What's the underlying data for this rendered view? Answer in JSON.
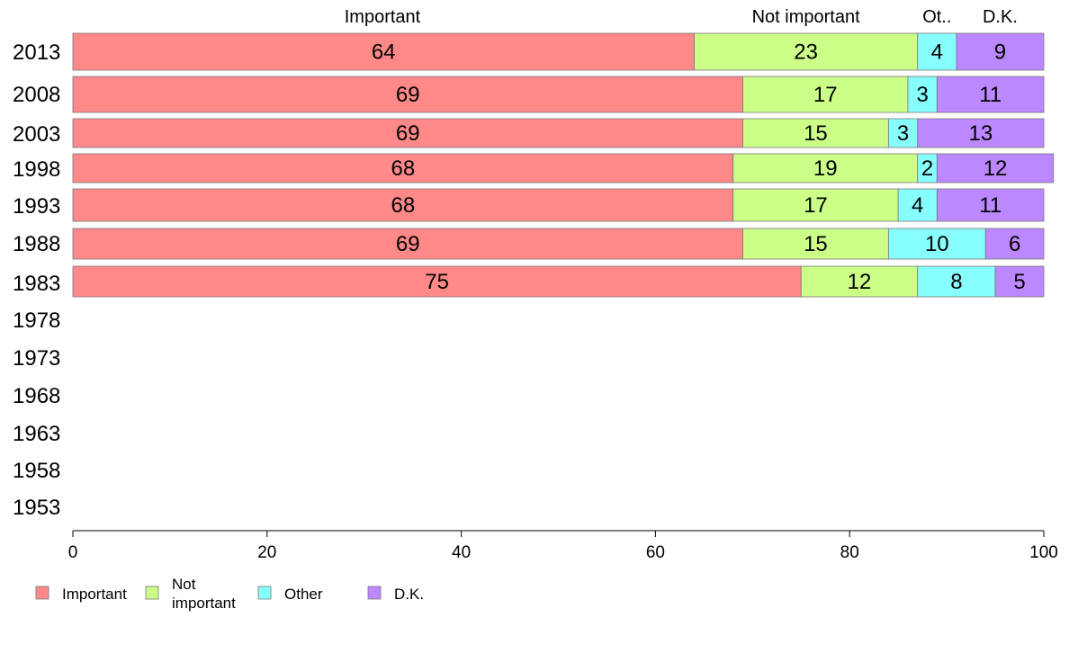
{
  "chart_data": {
    "type": "bar",
    "orientation": "horizontal",
    "stacked": true,
    "categories": [
      "2013",
      "2008",
      "2003",
      "1998",
      "1993",
      "1988",
      "1983",
      "1978",
      "1973",
      "1968",
      "1963",
      "1958",
      "1953"
    ],
    "series": [
      {
        "name": "Important",
        "color": "#FF8888",
        "values": [
          64,
          69,
          69,
          68,
          68,
          69,
          75,
          null,
          null,
          null,
          null,
          null,
          null
        ]
      },
      {
        "name": "Not important",
        "color": "#CCFF88",
        "values": [
          23,
          17,
          15,
          19,
          17,
          15,
          12,
          null,
          null,
          null,
          null,
          null,
          null
        ]
      },
      {
        "name": "Other",
        "color": "#88FFFF",
        "values": [
          4,
          3,
          3,
          2,
          4,
          10,
          8,
          null,
          null,
          null,
          null,
          null,
          null
        ]
      },
      {
        "name": "D.K.",
        "color": "#BB88FF",
        "values": [
          9,
          11,
          13,
          12,
          11,
          6,
          5,
          null,
          null,
          null,
          null,
          null,
          null
        ]
      }
    ],
    "column_headers": [
      "Important",
      "Not important",
      "Ot..",
      "D.K."
    ],
    "legend": [
      {
        "lines": [
          "Important"
        ],
        "color": "#FF8888"
      },
      {
        "lines": [
          "Not",
          "important"
        ],
        "color": "#CCFF88"
      },
      {
        "lines": [
          "Other"
        ],
        "color": "#88FFFF"
      },
      {
        "lines": [
          "D.K."
        ],
        "color": "#BB88FF"
      }
    ],
    "xlim": [
      0,
      100
    ],
    "x_ticks": [
      0,
      20,
      40,
      60,
      80,
      100
    ],
    "grid": false,
    "legend_position": "bottom-left",
    "xlabel": "",
    "ylabel": ""
  }
}
